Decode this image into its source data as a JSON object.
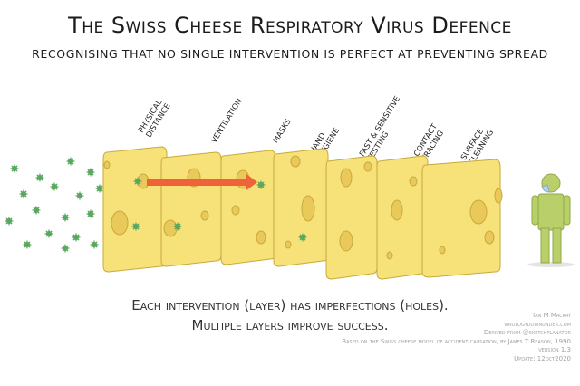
{
  "title": "The Swiss Cheese Respiratory Virus Defence",
  "subtitle": "Recognising that no single intervention is perfect at preventing spread",
  "layers": [
    {
      "label": "Physical\nDistance"
    },
    {
      "label": "Ventilation"
    },
    {
      "label": "Masks"
    },
    {
      "label": "Hand\nHygiene"
    },
    {
      "label": "Fast & Sensitive\nTesting"
    },
    {
      "label": "Contact\nTracing"
    },
    {
      "label": "Surface\nCleaning"
    }
  ],
  "caption": {
    "line1": "Each intervention (layer) has imperfections (holes).",
    "line2": "Multiple layers improve success."
  },
  "credits": {
    "author": "Ian M Mackay",
    "site": "virologydownunder.com",
    "derived": "Derived from @sketchplanator",
    "based": "Based on the Swiss cheese model of accident causation, by James T Reason, 1990",
    "version": "version 1.3",
    "update": "Update: 12oct2020"
  },
  "colors": {
    "cheese": "#f7e27a",
    "cheese_edge": "#d8b93a",
    "virus": "#5aa860",
    "arrow": "#f0623a",
    "person": "#b9cf6a",
    "mask": "#b7d2ec"
  },
  "icons": [
    "virus-icon",
    "person-icon",
    "arrow-icon"
  ]
}
